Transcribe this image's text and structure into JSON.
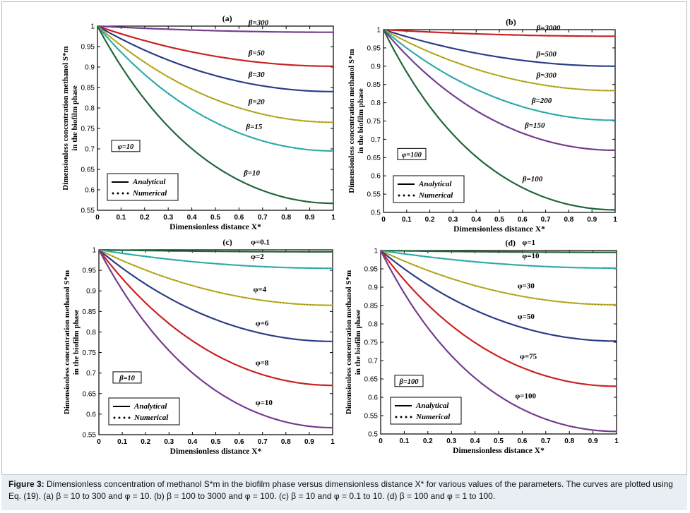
{
  "figure": {
    "caption_label": "Figure 3:",
    "caption_text": "Dimensionless concentration of methanol S*m in the biofilm phase versus dimensionless distance X* for various values of the parameters. The curves are plotted using Eq. (19). (a) β = 10 to 300 and φ = 10. (b) β = 100 to 3000 and φ = 100. (c) β = 10 and φ = 0.1 to 10. (d) β = 100 and φ = 1 to 100."
  },
  "chart_data": [
    {
      "panel": "(a)",
      "type": "line",
      "title": "(a)",
      "xlabel": "Dimensionless distance X*",
      "ylabel_line1": "Dimensionless concentration methanol S*m",
      "ylabel_line2": "in the biofilm phase",
      "xlim": [
        0,
        1
      ],
      "ylim": [
        0.55,
        1
      ],
      "xticks": [
        "0",
        "0.1",
        "0.2",
        "0.3",
        "0.4",
        "0.5",
        "0.6",
        "0.7",
        "0.8",
        "0.9",
        "1"
      ],
      "yticks": [
        "0.55",
        "0.6",
        "0.65",
        "0.7",
        "0.75",
        "0.8",
        "0.85",
        "0.9",
        "0.95",
        "1"
      ],
      "param_box": "φ=10",
      "legend": [
        "Analytical",
        "Numerical"
      ],
      "series": [
        {
          "name": "β=300",
          "label": "β=300",
          "color": "#7a3f98",
          "end": 0.985
        },
        {
          "name": "β=50",
          "label": "β=50",
          "color": "#d62222",
          "end": 0.902
        },
        {
          "name": "β=30",
          "label": "β=30",
          "color": "#2b3f8f",
          "end": 0.84
        },
        {
          "name": "β=20",
          "label": "β=20",
          "color": "#c4b428",
          "end": 0.765
        },
        {
          "name": "β=15",
          "label": "β=15",
          "color": "#32b6b6",
          "end": 0.695
        },
        {
          "name": "β=10",
          "label": "β=10",
          "color": "#1f6b3a",
          "end": 0.567
        }
      ]
    },
    {
      "panel": "(b)",
      "type": "line",
      "title": "(b)",
      "xlabel": "Dimensionless distance X*",
      "ylabel_line1": "Dimensionless concentration methanol S*m",
      "ylabel_line2": "in the biofilm phase",
      "xlim": [
        0,
        1
      ],
      "ylim": [
        0.5,
        1
      ],
      "xticks": [
        "0",
        "0.1",
        "0.2",
        "0.3",
        "0.4",
        "0.5",
        "0.6",
        "0.7",
        "0.8",
        "0.9",
        "1"
      ],
      "yticks": [
        "0.5",
        "0.55",
        "0.6",
        "0.65",
        "0.7",
        "0.75",
        "0.8",
        "0.85",
        "0.9",
        "0.95",
        "1"
      ],
      "param_box": "φ=100",
      "legend": [
        "Analytical",
        "Numerical"
      ],
      "series": [
        {
          "name": "β=3000",
          "label": "β=3000",
          "color": "#d62222",
          "end": 0.982
        },
        {
          "name": "β=500",
          "label": "β=500",
          "color": "#2b3f8f",
          "end": 0.9
        },
        {
          "name": "β=300",
          "label": "β=300",
          "color": "#c4b428",
          "end": 0.833
        },
        {
          "name": "β=200",
          "label": "β=200",
          "color": "#32b6b6",
          "end": 0.752
        },
        {
          "name": "β=150",
          "label": "β=150",
          "color": "#7a3f98",
          "end": 0.67
        },
        {
          "name": "β=100",
          "label": "β=100",
          "color": "#1f6b3a",
          "end": 0.507
        }
      ]
    },
    {
      "panel": "(c)",
      "type": "line",
      "title": "(c)",
      "xlabel": "Dimensionless distance X*",
      "ylabel_line1": "Dimensionless concentration methanol S*m",
      "ylabel_line2": "in the biofilm phase",
      "xlim": [
        0,
        1
      ],
      "ylim": [
        0.55,
        1
      ],
      "xticks": [
        "0",
        "0.1",
        "0.2",
        "0.3",
        "0.4",
        "0.5",
        "0.6",
        "0.7",
        "0.8",
        "0.9",
        "1"
      ],
      "yticks": [
        "0.55",
        "0.6",
        "0.65",
        "0.7",
        "0.75",
        "0.8",
        "0.85",
        "0.9",
        "0.95",
        "1"
      ],
      "param_box": "β=10",
      "legend": [
        "Analytical",
        "Numerical"
      ],
      "series": [
        {
          "name": "φ=0.1",
          "label": "φ=0.1",
          "color": "#1f6b3a",
          "end": 0.995
        },
        {
          "name": "φ=2",
          "label": "φ=2",
          "color": "#32b6b6",
          "end": 0.955
        },
        {
          "name": "φ=4",
          "label": "φ=4",
          "color": "#c4b428",
          "end": 0.865
        },
        {
          "name": "φ=6",
          "label": "φ=6",
          "color": "#2b3f8f",
          "end": 0.777
        },
        {
          "name": "φ=8",
          "label": "φ=8",
          "color": "#d62222",
          "end": 0.67
        },
        {
          "name": "φ=10",
          "label": "φ=10",
          "color": "#7a3f98",
          "end": 0.567
        }
      ]
    },
    {
      "panel": "(d)",
      "type": "line",
      "title": "(d)",
      "xlabel": "Dimensionless distance X*",
      "ylabel_line1": "Dimensionless concentration methanol S*m",
      "ylabel_line2": "in the biofilm phase",
      "xlim": [
        0,
        1
      ],
      "ylim": [
        0.5,
        1
      ],
      "xticks": [
        "0",
        "0.1",
        "0.2",
        "0.3",
        "0.4",
        "0.5",
        "0.6",
        "0.7",
        "0.8",
        "0.9",
        "1"
      ],
      "yticks": [
        "0.5",
        "0.55",
        "0.6",
        "0.65",
        "0.7",
        "0.75",
        "0.8",
        "0.85",
        "0.9",
        "0.95",
        "1"
      ],
      "param_box": "β=100",
      "legend": [
        "Analytical",
        "Numerical"
      ],
      "series": [
        {
          "name": "φ=1",
          "label": "φ=1",
          "color": "#1f6b3a",
          "end": 0.995
        },
        {
          "name": "φ=10",
          "label": "φ=10",
          "color": "#32b6b6",
          "end": 0.952
        },
        {
          "name": "φ=30",
          "label": "φ=30",
          "color": "#c4b428",
          "end": 0.852
        },
        {
          "name": "φ=50",
          "label": "φ=50",
          "color": "#2b3f8f",
          "end": 0.753
        },
        {
          "name": "φ=75",
          "label": "φ=75",
          "color": "#d62222",
          "end": 0.63
        },
        {
          "name": "φ=100",
          "label": "φ=100",
          "color": "#7a3f98",
          "end": 0.507
        }
      ]
    }
  ]
}
